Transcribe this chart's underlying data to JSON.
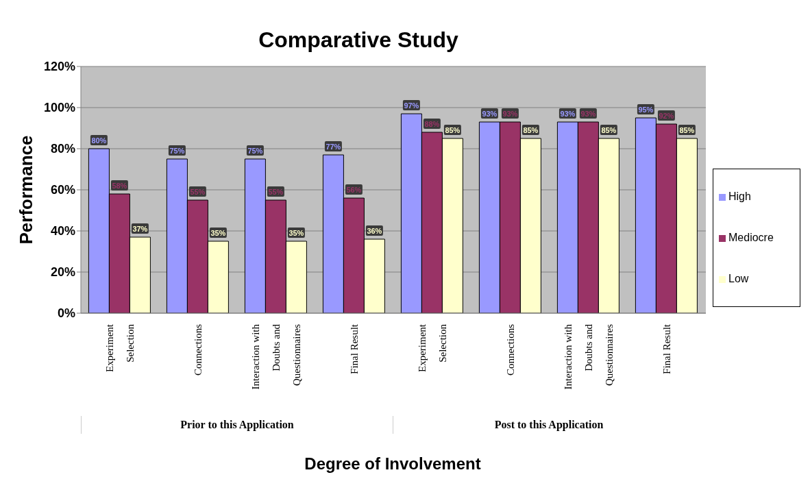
{
  "chart_data": {
    "type": "bar",
    "title": "Comparative Study",
    "xlabel": "Degree of Involvement",
    "ylabel": "Performance",
    "categories": [
      "Experiment Selection",
      "Connections",
      "Interaction with Doubts and Questionnaires",
      "Final Result",
      "Experiment Selection",
      "Connections",
      "Interaction with Doubts and Questionnaires",
      "Final Result"
    ],
    "series": [
      {
        "name": "High",
        "color": "#9999ff",
        "values": [
          80,
          75,
          75,
          77,
          97,
          93,
          93,
          95
        ],
        "value_labels": [
          "80%",
          "75%",
          "75%",
          "77%",
          "97%",
          "93%",
          "93%",
          "95%"
        ]
      },
      {
        "name": "Mediocre",
        "color": "#993366",
        "values": [
          58,
          55,
          55,
          56,
          88,
          93,
          93,
          92
        ],
        "value_labels": [
          "58%",
          "55%",
          "55%",
          "56%",
          "88%",
          "93%",
          "93%",
          "92%"
        ]
      },
      {
        "name": "Low",
        "color": "#ffffcc",
        "values": [
          37,
          35,
          35,
          36,
          85,
          85,
          85,
          85
        ],
        "value_labels": [
          "37%",
          "35%",
          "35%",
          "36%",
          "85%",
          "85%",
          "85%",
          "85%"
        ]
      }
    ],
    "annotations": [
      "Prior to this Application",
      "Post to this Application"
    ],
    "ylim": [
      0,
      120
    ],
    "yticks": [
      {
        "value": 0,
        "label": "0%"
      },
      {
        "value": 20,
        "label": "20%"
      },
      {
        "value": 40,
        "label": "40%"
      },
      {
        "value": 60,
        "label": "60%"
      },
      {
        "value": 80,
        "label": "80%"
      },
      {
        "value": 100,
        "label": "100%"
      },
      {
        "value": 120,
        "label": "120%"
      }
    ],
    "grid": "y",
    "legend": "right"
  }
}
